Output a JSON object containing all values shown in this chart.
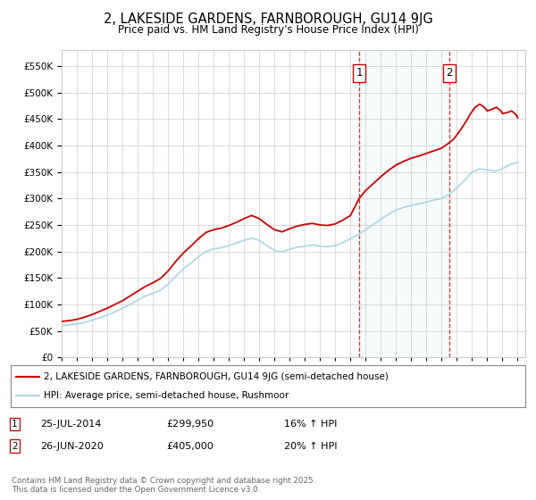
{
  "title": "2, LAKESIDE GARDENS, FARNBOROUGH, GU14 9JG",
  "subtitle": "Price paid vs. HM Land Registry's House Price Index (HPI)",
  "sale1_date": "25-JUL-2014",
  "sale1_price": 299950,
  "sale1_label": "1",
  "sale1_hpi": "16% ↑ HPI",
  "sale2_date": "26-JUN-2020",
  "sale2_price": 405000,
  "sale2_label": "2",
  "sale2_hpi": "20% ↑ HPI",
  "property_label": "2, LAKESIDE GARDENS, FARNBOROUGH, GU14 9JG (semi-detached house)",
  "hpi_label": "HPI: Average price, semi-detached house, Rushmoor",
  "footer": "Contains HM Land Registry data © Crown copyright and database right 2025.\nThis data is licensed under the Open Government Licence v3.0.",
  "property_color": "#cc0000",
  "hpi_color": "#add8e6",
  "marker1_x": 2014.57,
  "marker2_x": 2020.49,
  "ylim_max": 580000,
  "ylim_min": 0,
  "hpi_data_x": [
    1995,
    1995.5,
    1996,
    1996.5,
    1997,
    1997.5,
    1998,
    1998.5,
    1999,
    1999.5,
    2000,
    2000.5,
    2001,
    2001.5,
    2002,
    2002.5,
    2003,
    2003.5,
    2004,
    2004.5,
    2005,
    2005.5,
    2006,
    2006.5,
    2007,
    2007.5,
    2008,
    2008.5,
    2009,
    2009.5,
    2010,
    2010.5,
    2011,
    2011.5,
    2012,
    2012.5,
    2013,
    2013.5,
    2014,
    2014.5,
    2015,
    2015.5,
    2016,
    2016.5,
    2017,
    2017.5,
    2018,
    2018.5,
    2019,
    2019.5,
    2020,
    2020.5,
    2021,
    2021.5,
    2022,
    2022.5,
    2023,
    2023.5,
    2024,
    2024.5,
    2025
  ],
  "hpi_data_y": [
    60000,
    61500,
    63000,
    66000,
    70000,
    75000,
    80000,
    86000,
    93000,
    100000,
    108000,
    116000,
    121000,
    127000,
    138000,
    153000,
    167000,
    178000,
    190000,
    200000,
    205000,
    207000,
    211000,
    216000,
    221000,
    225000,
    221000,
    211000,
    202000,
    199000,
    204000,
    208000,
    210000,
    212000,
    210000,
    209000,
    211000,
    217000,
    224000,
    232000,
    241000,
    251000,
    261000,
    270000,
    278000,
    283000,
    287000,
    290000,
    293000,
    297000,
    300000,
    308000,
    320000,
    334000,
    350000,
    356000,
    354000,
    351000,
    356000,
    364000,
    368000
  ],
  "prop_data_x": [
    1995,
    1995.5,
    1996,
    1996.5,
    1997,
    1997.5,
    1998,
    1998.5,
    1999,
    1999.5,
    2000,
    2000.5,
    2001,
    2001.5,
    2002,
    2002.5,
    2003,
    2003.5,
    2004,
    2004.5,
    2005,
    2005.5,
    2006,
    2006.5,
    2007,
    2007.5,
    2008,
    2008.5,
    2009,
    2009.5,
    2010,
    2010.5,
    2011,
    2011.5,
    2012,
    2012.5,
    2013,
    2013.5,
    2014,
    2014.57,
    2015,
    2015.5,
    2016,
    2016.5,
    2017,
    2017.5,
    2018,
    2018.5,
    2019,
    2019.5,
    2020,
    2020.49,
    2020.8,
    2021,
    2021.3,
    2021.6,
    2021.9,
    2022.2,
    2022.5,
    2022.8,
    2023,
    2023.3,
    2023.6,
    2023.9,
    2024,
    2024.3,
    2024.6,
    2024.9,
    2025
  ],
  "prop_data_y": [
    68000,
    69500,
    72000,
    76000,
    81000,
    87000,
    93000,
    100000,
    107000,
    116000,
    125000,
    134000,
    141000,
    149000,
    163000,
    181000,
    197000,
    210000,
    224000,
    236000,
    241000,
    244000,
    249000,
    255000,
    262000,
    268000,
    262000,
    251000,
    241000,
    237000,
    243000,
    248000,
    251000,
    253000,
    250000,
    249000,
    252000,
    259000,
    268000,
    299950,
    315000,
    328000,
    341000,
    353000,
    363000,
    370000,
    376000,
    380000,
    385000,
    390000,
    395000,
    405000,
    412000,
    420000,
    432000,
    445000,
    460000,
    472000,
    478000,
    472000,
    465000,
    468000,
    472000,
    465000,
    460000,
    462000,
    465000,
    458000,
    452000
  ]
}
